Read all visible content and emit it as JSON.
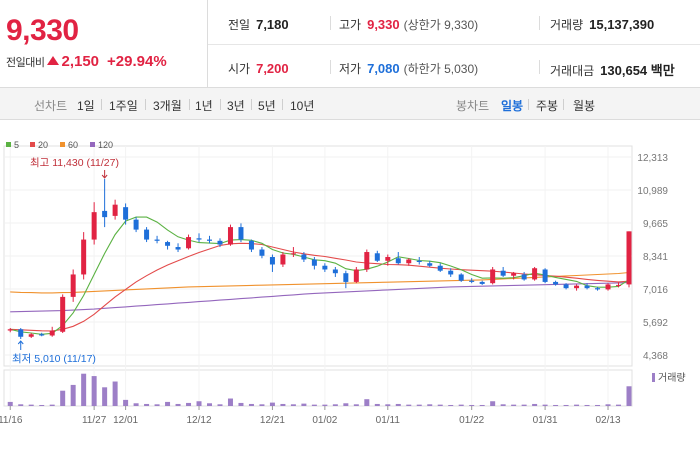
{
  "quote": {
    "price": "9,330",
    "change_label": "전일대비",
    "change_value": "2,150",
    "change_pct": "+29.94%",
    "color_up": "#e12343",
    "color_down": "#1e6fd9"
  },
  "stats": {
    "prev_label": "전일",
    "prev_value": "7,180",
    "high_label": "고가",
    "high_value": "9,330",
    "high_sub": "(상한가 9,330)",
    "volume_label": "거래량",
    "volume_value": "15,137,390",
    "open_label": "시가",
    "open_value": "7,200",
    "low_label": "저가",
    "low_value": "7,080",
    "low_sub": "(하한가 5,030)",
    "amount_label": "거래대금",
    "amount_value": "130,654 백만"
  },
  "tabs": {
    "line_chart": "선차트",
    "periods": [
      "1일",
      "1주일",
      "3개월",
      "1년",
      "3년",
      "5년",
      "10년"
    ],
    "candle_chart": "봉차트",
    "candle_periods": [
      "일봉",
      "주봉",
      "월봉"
    ],
    "candle_active": 0
  },
  "chart_data": {
    "type": "candlestick",
    "y_axis_ticks": [
      "12,313",
      "10,989",
      "9,665",
      "8,341",
      "7,016",
      "5,692",
      "4,368"
    ],
    "ylim": [
      4368,
      12313
    ],
    "x_tick_labels": [
      {
        "label": "11/16",
        "idx": 0
      },
      {
        "label": "11/27",
        "idx": 8
      },
      {
        "label": "12/01",
        "idx": 11
      },
      {
        "label": "12/12",
        "idx": 18
      },
      {
        "label": "12/21",
        "idx": 25
      },
      {
        "label": "01/02",
        "idx": 30
      },
      {
        "label": "01/11",
        "idx": 36
      },
      {
        "label": "01/22",
        "idx": 44
      },
      {
        "label": "01/31",
        "idx": 51
      },
      {
        "label": "02/13",
        "idx": 57
      }
    ],
    "legend": [
      {
        "name": "5",
        "color": "#5bb243"
      },
      {
        "name": "20",
        "color": "#e34b4b"
      },
      {
        "name": "60",
        "color": "#f0922e"
      },
      {
        "name": "120",
        "color": "#9467bd"
      }
    ],
    "annotations": {
      "high": "최고 11,430 (11/27)",
      "low": "최저 5,010 (11/17)"
    },
    "volume_label": "거래량",
    "candles": [
      [
        5350,
        5450,
        5280,
        5400
      ],
      [
        5400,
        5450,
        5010,
        5100
      ],
      [
        5100,
        5250,
        5050,
        5200
      ],
      [
        5200,
        5260,
        5120,
        5150
      ],
      [
        5150,
        5500,
        5100,
        5350
      ],
      [
        5300,
        6800,
        5250,
        6700
      ],
      [
        6700,
        7800,
        6500,
        7600
      ],
      [
        7600,
        9300,
        7400,
        9000
      ],
      [
        9000,
        10500,
        8800,
        10100
      ],
      [
        10150,
        11430,
        9500,
        9900
      ],
      [
        9950,
        10600,
        9800,
        10400
      ],
      [
        10300,
        10450,
        9600,
        9800
      ],
      [
        9800,
        9900,
        9300,
        9400
      ],
      [
        9400,
        9500,
        8900,
        9000
      ],
      [
        9000,
        9150,
        8850,
        8950
      ],
      [
        8900,
        8950,
        8600,
        8750
      ],
      [
        8700,
        8850,
        8500,
        8600
      ],
      [
        8650,
        9200,
        8600,
        9100
      ],
      [
        9050,
        9250,
        8900,
        9000
      ],
      [
        9000,
        9150,
        8850,
        8950
      ],
      [
        8950,
        9050,
        8700,
        8800
      ],
      [
        8800,
        9600,
        8750,
        9500
      ],
      [
        9500,
        9650,
        8900,
        9000
      ],
      [
        8950,
        9000,
        8500,
        8600
      ],
      [
        8600,
        8700,
        8250,
        8350
      ],
      [
        8300,
        8400,
        7700,
        8000
      ],
      [
        8000,
        8500,
        7900,
        8400
      ],
      [
        8450,
        8700,
        8300,
        8450
      ],
      [
        8400,
        8500,
        8100,
        8200
      ],
      [
        8200,
        8300,
        7800,
        7950
      ],
      [
        7950,
        8050,
        7700,
        7800
      ],
      [
        7800,
        7900,
        7500,
        7650
      ],
      [
        7650,
        7750,
        7050,
        7300
      ],
      [
        7300,
        7900,
        7250,
        7800
      ],
      [
        7800,
        8600,
        7700,
        8500
      ],
      [
        8450,
        8550,
        8100,
        8150
      ],
      [
        8150,
        8400,
        7950,
        8300
      ],
      [
        8250,
        8500,
        8000,
        8050
      ],
      [
        8050,
        8250,
        7950,
        8200
      ],
      [
        8150,
        8300,
        8000,
        8100
      ],
      [
        8050,
        8150,
        7900,
        7950
      ],
      [
        7950,
        8050,
        7700,
        7750
      ],
      [
        7750,
        7850,
        7500,
        7600
      ],
      [
        7600,
        7650,
        7300,
        7350
      ],
      [
        7350,
        7450,
        7250,
        7300
      ],
      [
        7300,
        7350,
        7180,
        7220
      ],
      [
        7250,
        7900,
        7200,
        7800
      ],
      [
        7750,
        7900,
        7500,
        7550
      ],
      [
        7550,
        7700,
        7400,
        7650
      ],
      [
        7600,
        7700,
        7350,
        7400
      ],
      [
        7400,
        7900,
        7350,
        7850
      ],
      [
        7800,
        7850,
        7250,
        7300
      ],
      [
        7300,
        7350,
        7150,
        7200
      ],
      [
        7200,
        7250,
        7000,
        7050
      ],
      [
        7050,
        7200,
        6950,
        7150
      ],
      [
        7150,
        7250,
        7000,
        7050
      ],
      [
        7050,
        7100,
        6950,
        7000
      ],
      [
        7000,
        7250,
        6950,
        7200
      ],
      [
        7150,
        7280,
        7080,
        7180
      ],
      [
        7200,
        9330,
        7080,
        9330
      ]
    ],
    "volumes": [
      0.12,
      0.05,
      0.04,
      0.03,
      0.04,
      0.45,
      0.62,
      0.95,
      0.88,
      0.55,
      0.72,
      0.18,
      0.08,
      0.06,
      0.05,
      0.12,
      0.06,
      0.09,
      0.14,
      0.08,
      0.05,
      0.22,
      0.09,
      0.06,
      0.05,
      0.1,
      0.06,
      0.05,
      0.07,
      0.04,
      0.04,
      0.05,
      0.08,
      0.05,
      0.2,
      0.06,
      0.05,
      0.06,
      0.04,
      0.04,
      0.05,
      0.04,
      0.03,
      0.04,
      0.03,
      0.03,
      0.14,
      0.05,
      0.04,
      0.04,
      0.06,
      0.04,
      0.03,
      0.03,
      0.04,
      0.03,
      0.03,
      0.05,
      0.04,
      0.58
    ],
    "ma5": [
      5400,
      5300,
      5250,
      5200,
      5240,
      5550,
      6060,
      6760,
      7600,
      8440,
      9200,
      9740,
      9900,
      9900,
      9700,
      9380,
      9110,
      8980,
      8880,
      8860,
      8840,
      8980,
      9000,
      8970,
      8850,
      8600,
      8460,
      8410,
      8300,
      8190,
      8150,
      8050,
      7830,
      7750,
      7810,
      7930,
      8100,
      8310,
      8240,
      8160,
      8130,
      8070,
      7940,
      7790,
      7600,
      7450,
      7460,
      7450,
      7470,
      7550,
      7650,
      7580,
      7480,
      7400,
      7320,
      7150,
      7090,
      7090,
      7120,
      7390
    ],
    "ma20": [
      5400,
      5380,
      5360,
      5340,
      5330,
      5400,
      5520,
      5720,
      6000,
      6350,
      6700,
      7000,
      7300,
      7550,
      7780,
      7980,
      8150,
      8320,
      8480,
      8620,
      8760,
      8830,
      8850,
      8840,
      8800,
      8700,
      8600,
      8500,
      8430,
      8370,
      8320,
      8250,
      8180,
      8100,
      8060,
      8030,
      8000,
      7990,
      7970,
      7930,
      7890,
      7850,
      7820,
      7790,
      7770,
      7750,
      7730,
      7700,
      7660,
      7620,
      7590,
      7560,
      7530,
      7490,
      7450,
      7400,
      7360,
      7330,
      7300,
      7330
    ],
    "ma60": [
      6900,
      6880,
      6870,
      6860,
      6860,
      6870,
      6880,
      6900,
      6920,
      6940,
      6960,
      6980,
      7000,
      7020,
      7040,
      7060,
      7080,
      7100,
      7110,
      7120,
      7130,
      7140,
      7150,
      7160,
      7170,
      7180,
      7190,
      7200,
      7210,
      7220,
      7230,
      7240,
      7250,
      7260,
      7270,
      7280,
      7290,
      7300,
      7310,
      7320,
      7330,
      7340,
      7350,
      7360,
      7370,
      7380,
      7400,
      7420,
      7440,
      7460,
      7480,
      7500,
      7520,
      7540,
      7560,
      7580,
      7600,
      7620,
      7640,
      7680
    ],
    "ma120": [
      6100,
      6110,
      6120,
      6130,
      6140,
      6150,
      6170,
      6190,
      6210,
      6240,
      6270,
      6300,
      6330,
      6360,
      6390,
      6420,
      6450,
      6480,
      6510,
      6540,
      6570,
      6600,
      6630,
      6660,
      6690,
      6720,
      6750,
      6780,
      6810,
      6840,
      6860,
      6880,
      6900,
      6920,
      6940,
      6960,
      6980,
      7000,
      7020,
      7040,
      7060,
      7080,
      7100,
      7110,
      7120,
      7130,
      7140,
      7150,
      7160,
      7170,
      7180,
      7190,
      7200,
      7210,
      7220,
      7230,
      7240,
      7250,
      7260,
      7280
    ]
  }
}
